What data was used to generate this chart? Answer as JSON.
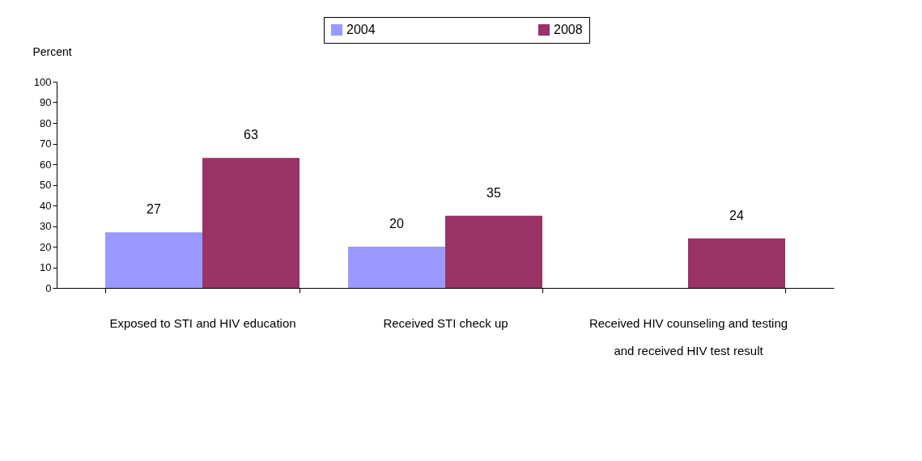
{
  "chart_data": {
    "type": "bar",
    "ylabel": "Percent",
    "categories": [
      "Exposed to STI and HIV education",
      "Received STI check up",
      "Received HIV counseling and testing and received HIV test result"
    ],
    "series": [
      {
        "name": "2004",
        "color": "#9999ff",
        "values": [
          27,
          20,
          null
        ]
      },
      {
        "name": "2008",
        "color": "#993366",
        "values": [
          63,
          35,
          24
        ]
      }
    ],
    "ylim": [
      0,
      100
    ],
    "yticks": [
      0,
      10,
      20,
      30,
      40,
      50,
      60,
      70,
      80,
      90,
      100
    ],
    "data_labels": true,
    "grid": false,
    "legend": "top"
  }
}
